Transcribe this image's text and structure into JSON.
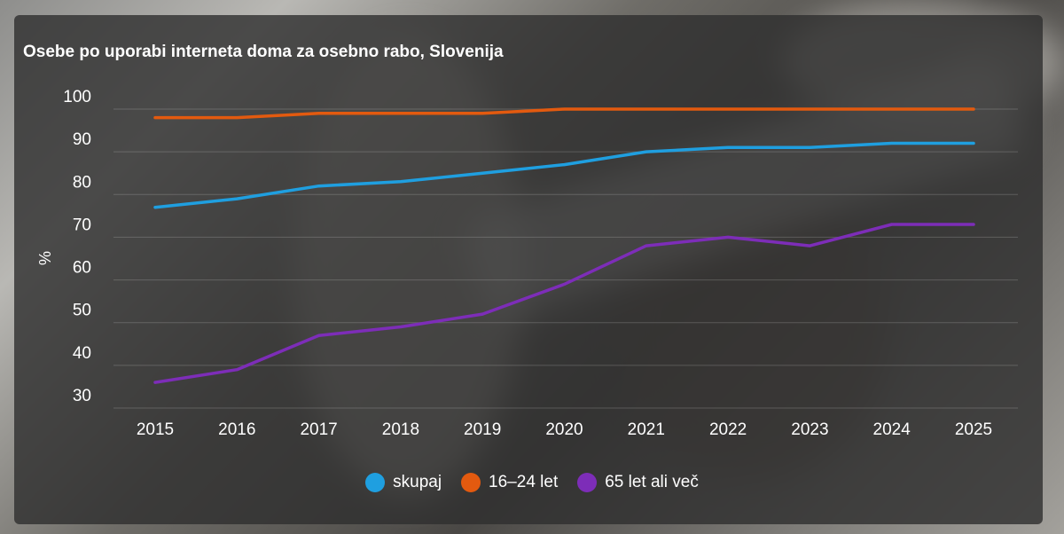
{
  "chart_data": {
    "type": "line",
    "title": "Osebe po uporabi interneta doma za osebno rabo, Slovenija",
    "xlabel": "",
    "ylabel": "%",
    "ylim": [
      30,
      100
    ],
    "yticks": [
      "30",
      "40",
      "50",
      "60",
      "70",
      "80",
      "90",
      "100"
    ],
    "categories": [
      "2015",
      "2016",
      "2017",
      "2018",
      "2019",
      "2020",
      "2021",
      "2022",
      "2023",
      "2024",
      "2025"
    ],
    "grid": true,
    "legend": "bottom-center",
    "series": [
      {
        "name": "skupaj",
        "color": "#1f9fe0",
        "values": [
          77,
          79,
          82,
          83,
          85,
          87,
          90,
          91,
          91,
          92,
          92
        ]
      },
      {
        "name": "16–24 let",
        "color": "#e35a0f",
        "values": [
          98,
          98,
          99,
          99,
          99,
          100,
          100,
          100,
          100,
          100,
          100
        ]
      },
      {
        "name": "65 let ali več",
        "color": "#7d2db8",
        "values": [
          36,
          39,
          47,
          49,
          52,
          59,
          68,
          70,
          68,
          73,
          73
        ]
      }
    ]
  }
}
